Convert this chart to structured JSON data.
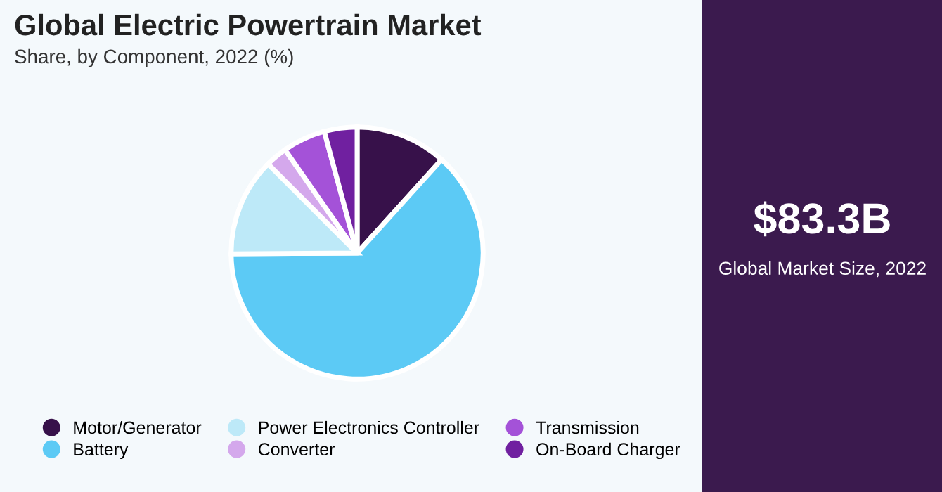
{
  "chart_data": {
    "type": "pie",
    "title": "Global Electric Powertrain Market",
    "subtitle": "Share, by Component, 2022 (%)",
    "categories": [
      "Motor/Generator",
      "Battery",
      "Power Electronics Controller",
      "Converter",
      "Transmission",
      "On-Board Charger"
    ],
    "values": [
      11.7,
      63.2,
      12.6,
      2.8,
      5.5,
      4.2
    ],
    "colors": [
      "#37114a",
      "#5ccaf5",
      "#bde9f8",
      "#d4a8ec",
      "#a452d8",
      "#7020a0"
    ],
    "legend": "bottom",
    "annotations": [
      "$83.3B",
      "Global Market Size, 2022"
    ]
  }
}
